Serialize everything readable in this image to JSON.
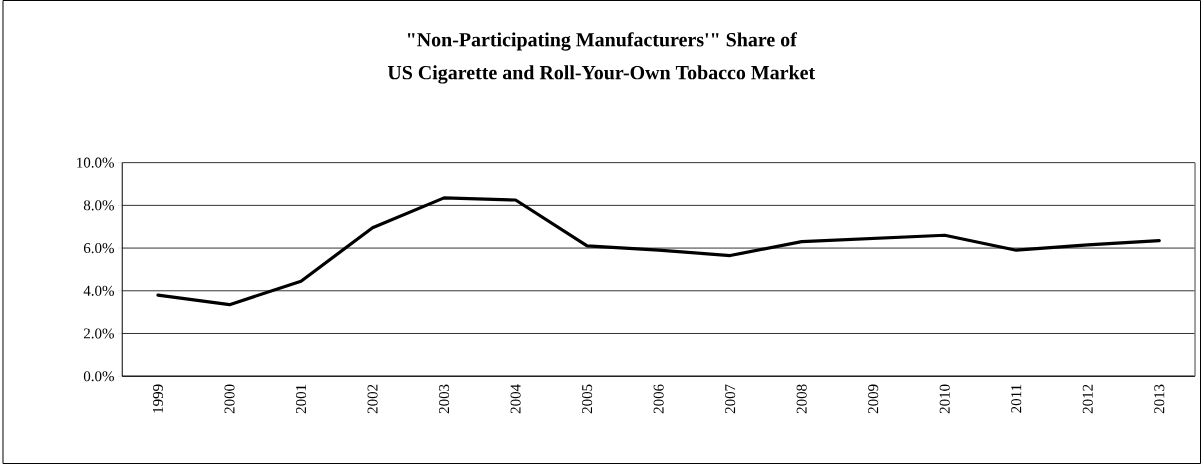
{
  "chart_data": {
    "type": "line",
    "title": "\"Non-Participating Manufacturers'\" Share of\nUS Cigarette and Roll-Your-Own Tobacco Market",
    "categories": [
      "1999",
      "2000",
      "2001",
      "2002",
      "2003",
      "2004",
      "2005",
      "2006",
      "2007",
      "2008",
      "2009",
      "2010",
      "2011",
      "2012",
      "2013"
    ],
    "series": [
      {
        "color": "#000000",
        "values": [
          3.8,
          3.35,
          4.45,
          6.95,
          8.35,
          8.25,
          6.1,
          5.9,
          5.65,
          6.3,
          6.45,
          6.6,
          5.9,
          6.15,
          6.35
        ]
      }
    ],
    "ylim": [
      0,
      10
    ],
    "yticks": [
      {
        "value": 0,
        "label": "0.0%"
      },
      {
        "value": 2,
        "label": "2.0%"
      },
      {
        "value": 4,
        "label": "4.0%"
      },
      {
        "value": 6,
        "label": "6.0%"
      },
      {
        "value": 8,
        "label": "8.0%"
      },
      {
        "value": 10,
        "label": "10.0%"
      }
    ],
    "grid": "y",
    "marker": "none",
    "line_style": "solid"
  }
}
